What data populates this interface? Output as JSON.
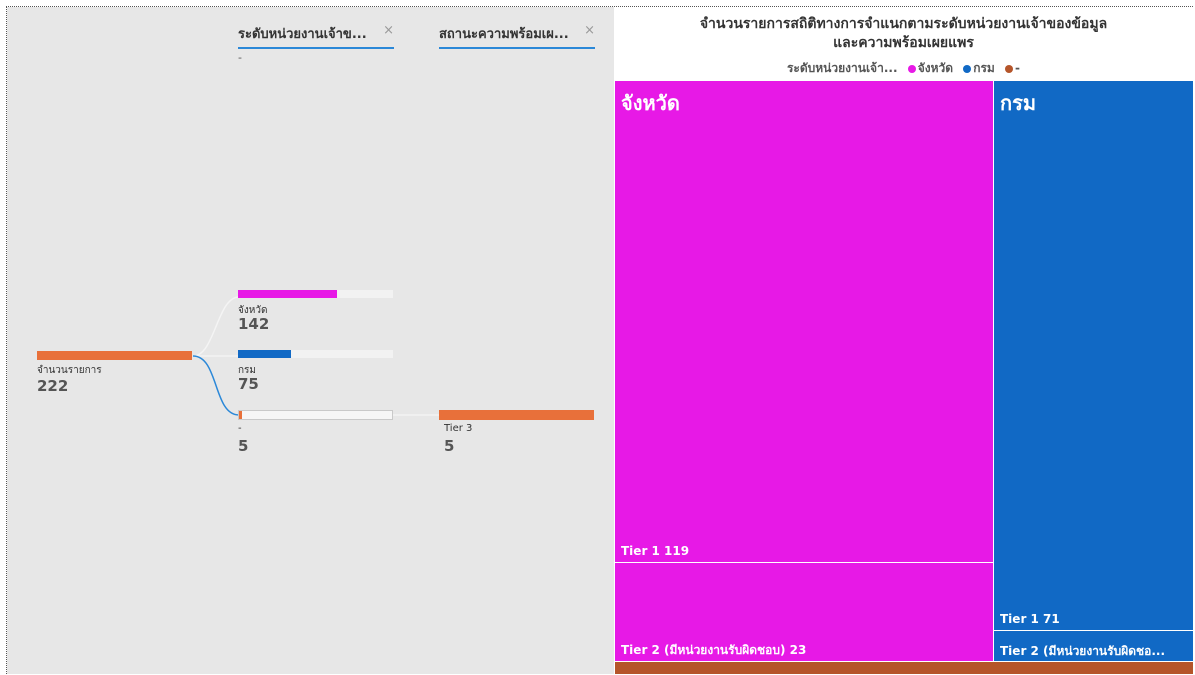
{
  "decomposition_tree": {
    "level_headers": [
      {
        "label": "ระดับหน่วยงานเจ้าข...",
        "close": "×",
        "sub": "-"
      },
      {
        "label": "สถานะความพร้อมเผ...",
        "close": "×"
      }
    ],
    "root": {
      "label": "จำนวนรายการ",
      "value": "222",
      "color": "#e8703a"
    },
    "level1": [
      {
        "label": "จังหวัด",
        "value": "142",
        "fill_fraction": 0.64,
        "color": "#e719e6"
      },
      {
        "label": "กรม",
        "value": "75",
        "fill_fraction": 0.34,
        "color": "#1169c5"
      },
      {
        "label": "-",
        "value": "5",
        "fill_fraction": 0.02,
        "color": "#e8703a"
      }
    ],
    "level2": [
      {
        "label": "Tier 3",
        "value": "5",
        "fill_fraction": 1.0,
        "color": "#e8703a"
      }
    ]
  },
  "treemap": {
    "title_line1": "จำนวนรายการสถิติทางการจำแนกตามระดับหน่วยงานเจ้าของข้อมูล",
    "title_line2": "และความพร้อมเผยแพร",
    "legend": {
      "title": "ระดับหน่วยงานเจ้า...",
      "items": [
        {
          "label": "จังหวัด",
          "color": "#e719e6"
        },
        {
          "label": "กรม",
          "color": "#1169c5"
        },
        {
          "label": "-",
          "color": "#b5552a"
        }
      ]
    },
    "groups": [
      {
        "name": "จังหวัด",
        "color": "#e719e6",
        "tiles": [
          {
            "label": "Tier 1 119"
          },
          {
            "label": "Tier 2 (มีหน่วยงานรับผิดชอบ) 23"
          }
        ]
      },
      {
        "name": "กรม",
        "color": "#1169c5",
        "tiles": [
          {
            "label": "Tier 1 71"
          },
          {
            "label": "Tier 2 (มีหน่วยงานรับผิดชอ..."
          }
        ]
      },
      {
        "name": "-",
        "color": "#b5552a",
        "tiles": []
      }
    ]
  }
}
